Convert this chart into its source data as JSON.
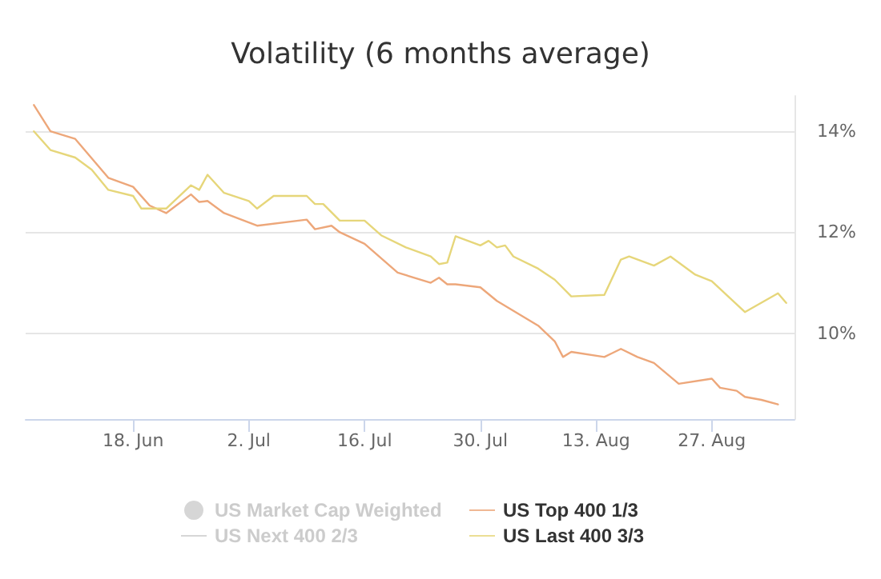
{
  "chart_data": {
    "type": "line",
    "title": "Volatility (6 months average)",
    "marker": "none",
    "grid": "y",
    "legend": "bottom",
    "xlim": [
      "--06-05",
      "--09-06"
    ],
    "xticks": [
      {
        "value": "--06-18",
        "label": "18. Jun"
      },
      {
        "value": "--07-02",
        "label": "2. Jul"
      },
      {
        "value": "--07-16",
        "label": "16. Jul"
      },
      {
        "value": "--07-30",
        "label": "30. Jul"
      },
      {
        "value": "--08-13",
        "label": "13. Aug"
      },
      {
        "value": "--08-27",
        "label": "27. Aug"
      }
    ],
    "ylim": [
      8.3,
      14.7
    ],
    "yticks": [
      {
        "value": 10,
        "label": "10%"
      },
      {
        "value": 12,
        "label": "12%"
      },
      {
        "value": 14,
        "label": "14%"
      }
    ],
    "series": [
      {
        "name": "US Market Cap Weighted",
        "type": "scatter",
        "color": "#cccccc"
      },
      {
        "name": "US Top 400 1/3",
        "color": "#eda77a",
        "x": [
          "--06-06",
          "--06-08",
          "--06-11",
          "--06-15",
          "--06-18",
          "--06-20",
          "--06-22",
          "--06-25",
          "--06-26",
          "--06-27",
          "--06-29",
          "--07-03",
          "--07-09",
          "--07-10",
          "--07-12",
          "--07-13",
          "--07-16",
          "--07-20",
          "--07-24",
          "--07-25",
          "--07-26",
          "--07-27",
          "--07-30",
          "--08-01",
          "--08-06",
          "--08-08",
          "--08-09",
          "--08-10",
          "--08-14",
          "--08-16",
          "--08-18",
          "--08-20",
          "--08-23",
          "--08-27",
          "--08-28",
          "--08-30",
          "--08-31",
          "--09-02",
          "--09-04"
        ],
        "values": [
          14.52,
          14.0,
          13.85,
          13.08,
          12.9,
          12.53,
          12.38,
          12.75,
          12.6,
          12.62,
          12.38,
          12.13,
          12.25,
          12.06,
          12.13,
          12.0,
          11.77,
          11.2,
          11.0,
          11.1,
          10.97,
          10.97,
          10.91,
          10.64,
          10.15,
          9.84,
          9.53,
          9.63,
          9.53,
          9.69,
          9.53,
          9.41,
          9.0,
          9.1,
          8.92,
          8.86,
          8.74,
          8.68,
          8.59
        ]
      },
      {
        "name": "US Next 400 2/3",
        "type": "line",
        "color": "#cccccc"
      },
      {
        "name": "US Last 400 3/3",
        "color": "#e6d67a",
        "x": [
          "--06-06",
          "--06-08",
          "--06-11",
          "--06-13",
          "--06-15",
          "--06-18",
          "--06-19",
          "--06-22",
          "--06-25",
          "--06-26",
          "--06-27",
          "--06-29",
          "--07-02",
          "--07-03",
          "--07-05",
          "--07-09",
          "--07-10",
          "--07-11",
          "--07-13",
          "--07-16",
          "--07-18",
          "--07-21",
          "--07-24",
          "--07-25",
          "--07-26",
          "--07-27",
          "--07-30",
          "--07-31",
          "--08-01",
          "--08-02",
          "--08-03",
          "--08-06",
          "--08-08",
          "--08-10",
          "--08-14",
          "--08-16",
          "--08-17",
          "--08-20",
          "--08-22",
          "--08-25",
          "--08-27",
          "--08-31",
          "--09-04",
          "--09-05"
        ],
        "values": [
          14.0,
          13.63,
          13.48,
          13.24,
          12.84,
          12.72,
          12.47,
          12.47,
          12.93,
          12.84,
          13.14,
          12.78,
          12.62,
          12.47,
          12.72,
          12.72,
          12.56,
          12.56,
          12.23,
          12.23,
          11.94,
          11.7,
          11.52,
          11.37,
          11.4,
          11.92,
          11.74,
          11.83,
          11.7,
          11.74,
          11.52,
          11.28,
          11.06,
          10.73,
          10.76,
          11.46,
          11.52,
          11.34,
          11.52,
          11.16,
          11.03,
          10.42,
          10.79,
          10.6
        ]
      }
    ]
  }
}
